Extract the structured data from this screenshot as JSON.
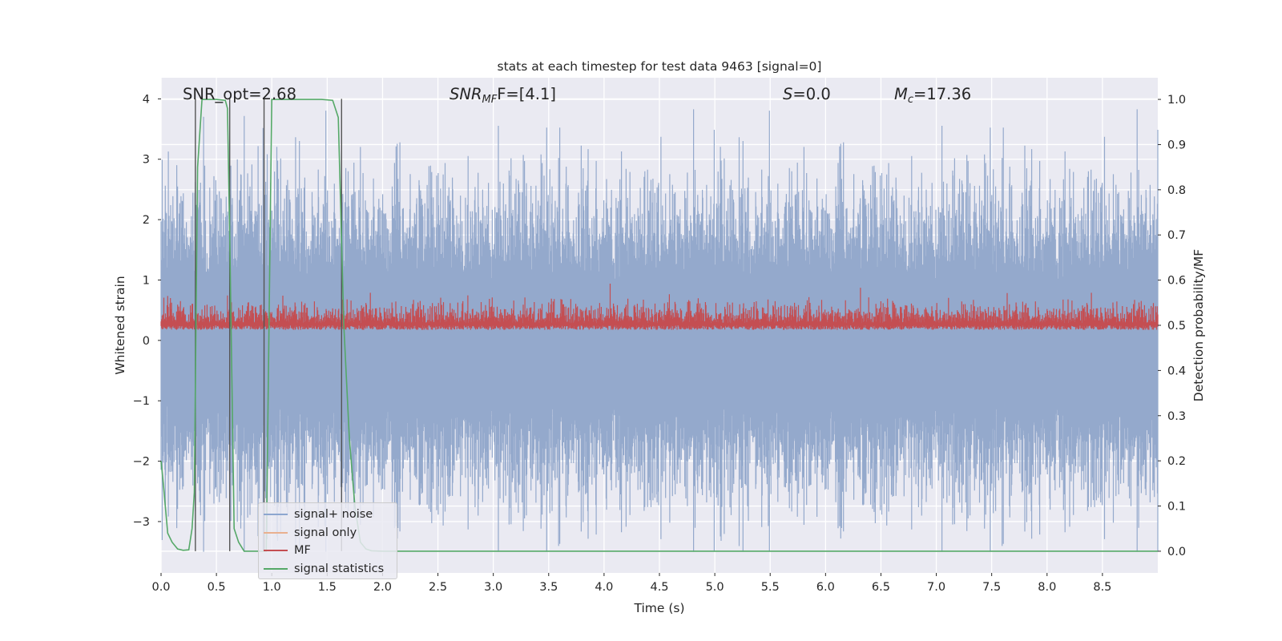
{
  "chart_data": {
    "type": "line",
    "title": "stats at each timestep for test data 9463 [signal=0]",
    "xlabel": "Time (s)",
    "ylabel_left": "Whitened strain",
    "ylabel_right": "Detection probability/MF",
    "xlim": [
      0.0,
      9.0
    ],
    "ylim_left": [
      -3.85,
      4.35
    ],
    "ylim_right": [
      -0.048,
      1.048
    ],
    "x_ticks": [
      "0.0",
      "0.5",
      "1.0",
      "1.5",
      "2.0",
      "2.5",
      "3.0",
      "3.5",
      "4.0",
      "4.5",
      "5.0",
      "5.5",
      "6.0",
      "6.5",
      "7.0",
      "7.5",
      "8.0",
      "8.5"
    ],
    "y_ticks_left": [
      "−3",
      "−2",
      "−1",
      "0",
      "1",
      "2",
      "3",
      "4"
    ],
    "y_ticks_right": [
      "0.0",
      "0.1",
      "0.2",
      "0.3",
      "0.4",
      "0.5",
      "0.6",
      "0.7",
      "0.8",
      "0.9",
      "1.0"
    ],
    "annotations": {
      "snr_opt": "SNR_opt=2.68",
      "snr_mf_sym": "SNR",
      "snr_mf_sub": "MF",
      "snr_mf_value": "F=[4.1]",
      "s_sym": "S",
      "s_value": "=0.0",
      "mc_sym": "M",
      "mc_sub": "c",
      "mc_value": "=17.36"
    },
    "series": [
      {
        "name": "signal+ noise",
        "axis": "left",
        "color": "#4c72b0",
        "style": "noise",
        "amplitude": 3.0
      },
      {
        "name": "signal only",
        "axis": "left",
        "color": "#dd8452",
        "values": []
      },
      {
        "name": "MF",
        "axis": "right",
        "color": "#c44e52",
        "style": "noise",
        "center": 0.5,
        "low": 0.47,
        "high": 0.58
      },
      {
        "name": "signal statistics",
        "axis": "right",
        "color": "#55a868",
        "x": [
          0.0,
          0.02,
          0.06,
          0.1,
          0.15,
          0.2,
          0.25,
          0.28,
          0.3,
          0.33,
          0.37,
          0.4,
          0.5,
          0.58,
          0.6,
          0.62,
          0.66,
          0.7,
          0.75,
          0.8,
          0.85,
          0.9,
          0.95,
          1.0,
          1.3,
          1.45,
          1.55,
          1.6,
          1.65,
          1.7,
          1.75,
          1.8,
          1.85,
          1.9,
          2.0,
          9.0
        ],
        "y": [
          0.2,
          0.15,
          0.04,
          0.02,
          0.005,
          0.002,
          0.003,
          0.05,
          0.13,
          0.85,
          1.0,
          1.0,
          1.0,
          0.998,
          0.98,
          0.7,
          0.05,
          0.02,
          0.0,
          0.0,
          0.0,
          0.0,
          0.0,
          1.0,
          1.0,
          1.0,
          0.998,
          0.96,
          0.5,
          0.25,
          0.1,
          0.02,
          0.005,
          0.001,
          0.0,
          0.0
        ]
      }
    ],
    "vertical_lines_x": [
      0.31,
      0.62,
      0.93,
      1.63
    ],
    "legend": [
      "signal+ noise",
      "signal only",
      "MF",
      "signal statistics"
    ],
    "legend_position": "lower-left",
    "grid": true
  }
}
